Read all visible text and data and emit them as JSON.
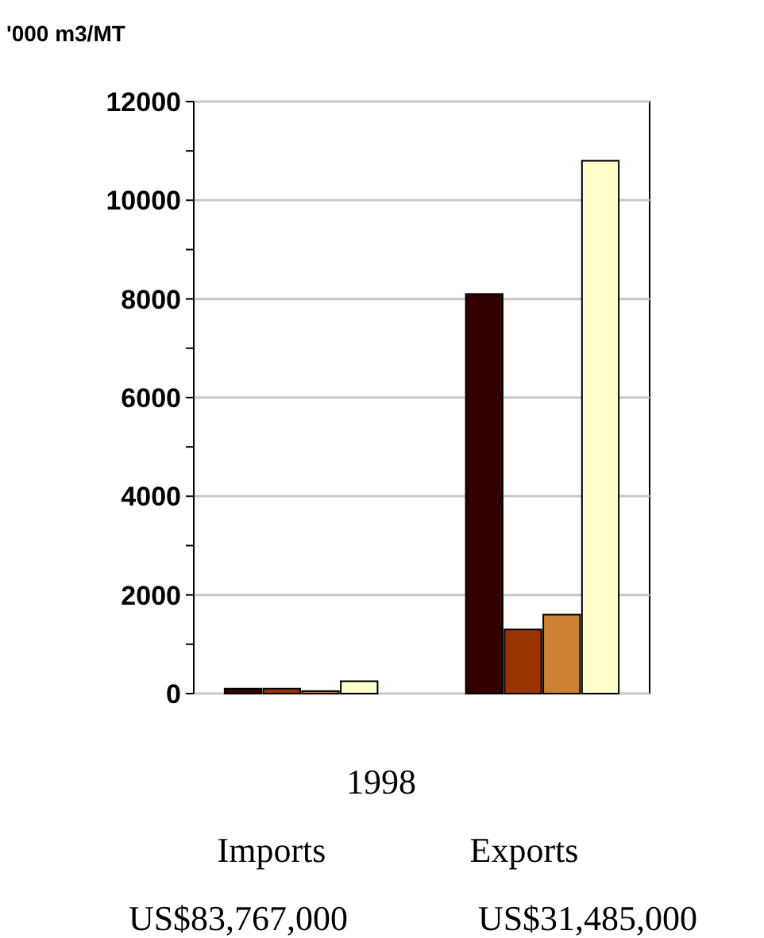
{
  "chart_data": {
    "type": "bar",
    "ylabel": "'000 m3/MT",
    "categories": [
      null,
      null
    ],
    "series": [
      {
        "color": "#330000",
        "values": [
          100,
          8100
        ]
      },
      {
        "color": "#993300",
        "values": [
          100,
          1300
        ]
      },
      {
        "color": "#cc8033",
        "values": [
          50,
          1600
        ]
      },
      {
        "color": "#ffffcc",
        "values": [
          250,
          10800
        ]
      }
    ],
    "ylim": [
      0,
      12000
    ],
    "yticks": [
      0,
      2000,
      4000,
      6000,
      8000,
      10000,
      12000
    ],
    "grid": "y",
    "annotations": [
      "1998",
      "Imports",
      "Exports",
      "US$83,767,000",
      "US$31,485,000"
    ]
  }
}
